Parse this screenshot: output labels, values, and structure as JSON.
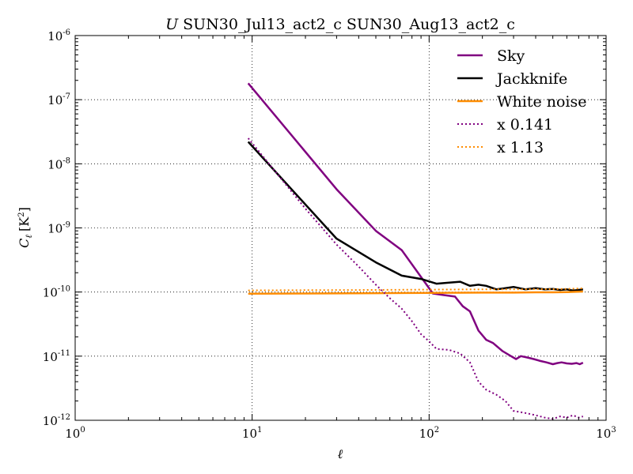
{
  "chart_data": {
    "type": "line",
    "title_prefix": "U",
    "title": "SUN30_Jul13_act2_c SUN30_Aug13_act2_c",
    "xlabel": "ℓ",
    "ylabel_main": "C",
    "ylabel_sub": "ℓ",
    "ylabel_unit": "[K",
    "ylabel_unit_exp": "2",
    "ylabel_unit_close": "]",
    "xscale": "log",
    "yscale": "log",
    "xlim": [
      1,
      1000
    ],
    "ylim": [
      1e-12,
      1e-06
    ],
    "grid": true,
    "legend_position": "top-right",
    "x_ticks": [
      {
        "value": 1,
        "base": "10",
        "exp": "0"
      },
      {
        "value": 10,
        "base": "10",
        "exp": "1"
      },
      {
        "value": 100,
        "base": "10",
        "exp": "2"
      },
      {
        "value": 1000,
        "base": "10",
        "exp": "3"
      }
    ],
    "y_ticks": [
      {
        "value": 1e-12,
        "base": "10",
        "exp": "-12"
      },
      {
        "value": 1e-11,
        "base": "10",
        "exp": "-11"
      },
      {
        "value": 1e-10,
        "base": "10",
        "exp": "-10"
      },
      {
        "value": 1e-09,
        "base": "10",
        "exp": "-9"
      },
      {
        "value": 1e-08,
        "base": "10",
        "exp": "-8"
      },
      {
        "value": 1e-07,
        "base": "10",
        "exp": "-7"
      },
      {
        "value": 1e-06,
        "base": "10",
        "exp": "-6"
      }
    ],
    "series": [
      {
        "name": "Sky",
        "color": "#800080",
        "style": "solid",
        "x": [
          9.5,
          30,
          50,
          70,
          105,
          120,
          140,
          155,
          170,
          190,
          210,
          230,
          260,
          290,
          310,
          330,
          360,
          390,
          420,
          460,
          500,
          530,
          560,
          600,
          640,
          680,
          710,
          740
        ],
        "y": [
          1.8e-07,
          4e-09,
          9e-10,
          4.5e-10,
          9.5e-11,
          9e-11,
          8.5e-11,
          6e-11,
          5e-11,
          2.5e-11,
          1.8e-11,
          1.6e-11,
          1.2e-11,
          1e-11,
          9e-12,
          1e-11,
          9.5e-12,
          9e-12,
          8.5e-12,
          8e-12,
          7.5e-12,
          7.8e-12,
          8e-12,
          7.7e-12,
          7.6e-12,
          7.8e-12,
          7.5e-12,
          7.9e-12
        ]
      },
      {
        "name": "Jackknife",
        "color": "#000000",
        "style": "solid",
        "x": [
          9.5,
          30,
          50,
          70,
          90,
          110,
          130,
          150,
          170,
          190,
          210,
          240,
          270,
          300,
          350,
          400,
          450,
          500,
          550,
          600,
          650,
          700,
          740
        ],
        "y": [
          2.2e-08,
          6.8e-10,
          2.9e-10,
          1.8e-10,
          1.6e-10,
          1.35e-10,
          1.4e-10,
          1.45e-10,
          1.25e-10,
          1.3e-10,
          1.25e-10,
          1.1e-10,
          1.15e-10,
          1.2e-10,
          1.1e-10,
          1.15e-10,
          1.1e-10,
          1.12e-10,
          1.08e-10,
          1.1e-10,
          1.05e-10,
          1.08e-10,
          1.1e-10
        ]
      },
      {
        "name": "White noise",
        "color": "#ff8c00",
        "style": "solid",
        "x": [
          9.5,
          20,
          50,
          100,
          200,
          300,
          400,
          500,
          600,
          740
        ],
        "y": [
          9.4e-11,
          9.5e-11,
          9.6e-11,
          9.7e-11,
          9.8e-11,
          9.8e-11,
          9.9e-11,
          9.9e-11,
          1e-10,
          1.02e-10
        ]
      },
      {
        "name": "x 0.141",
        "color": "#800080",
        "style": "dotted",
        "x": [
          9.5,
          20,
          30,
          40,
          50,
          60,
          70,
          80,
          90,
          100,
          110,
          130,
          150,
          170,
          190,
          210,
          240,
          270,
          300,
          350,
          400,
          450,
          500,
          550,
          600,
          650,
          700,
          740
        ],
        "y": [
          2.5e-08,
          2e-09,
          5.5e-10,
          2.5e-10,
          1.3e-10,
          8e-11,
          5.5e-11,
          3.5e-11,
          2.2e-11,
          1.7e-11,
          1.3e-11,
          1.25e-11,
          1.1e-11,
          8e-12,
          4e-12,
          3e-12,
          2.5e-12,
          2e-12,
          1.4e-12,
          1.3e-12,
          1.2e-12,
          1.1e-12,
          1.05e-12,
          1.15e-12,
          1.1e-12,
          1.2e-12,
          1.1e-12,
          1.15e-12
        ]
      },
      {
        "name": "x 1.13",
        "color": "#ff8c00",
        "style": "dotted",
        "x": [
          9.5,
          20,
          50,
          100,
          200,
          300,
          400,
          500,
          600,
          740
        ],
        "y": [
          1.06e-10,
          1.07e-10,
          1.08e-10,
          1.09e-10,
          1.1e-10,
          1.1e-10,
          1.11e-10,
          1.11e-10,
          1.12e-10,
          1.14e-10
        ]
      }
    ]
  }
}
